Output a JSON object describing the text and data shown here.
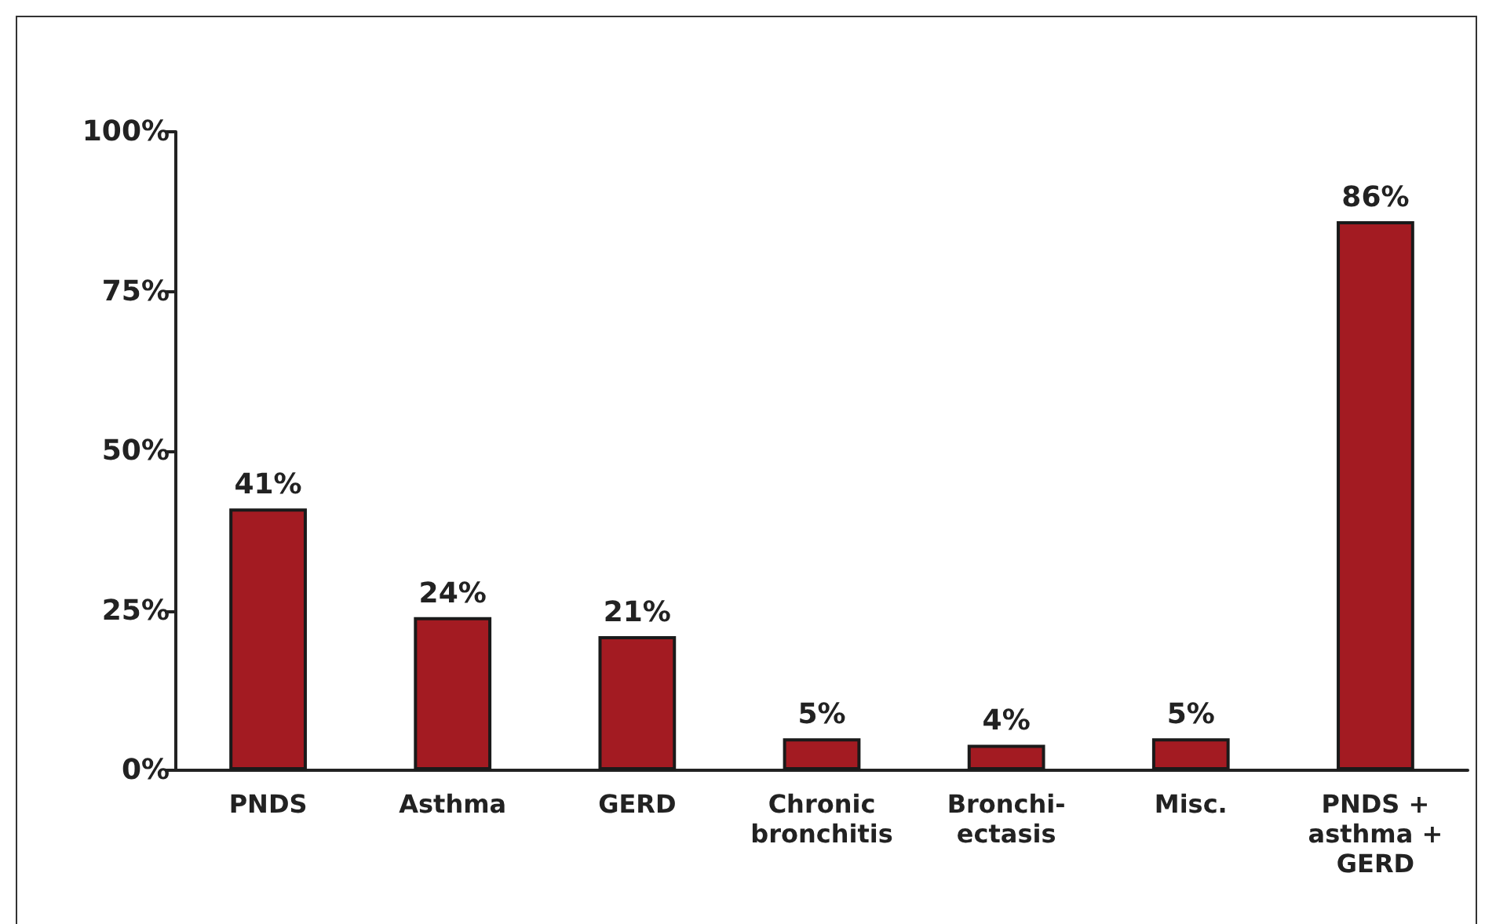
{
  "chart_data": {
    "type": "bar",
    "categories": [
      "PNDS",
      "Asthma",
      "GERD",
      "Chronic\nbronchitis",
      "Bronchi-\nectasis",
      "Misc.",
      "PNDS +\nasthma +\nGERD"
    ],
    "values": [
      41,
      24,
      21,
      5,
      4,
      5,
      86
    ],
    "value_labels": [
      "41%",
      "24%",
      "21%",
      "5%",
      "4%",
      "5%",
      "86%"
    ],
    "color": "#a31b22",
    "ylim": [
      0,
      100
    ],
    "yticks": [
      {
        "value": 0,
        "label": "0%"
      },
      {
        "value": 25,
        "label": "25%"
      },
      {
        "value": 50,
        "label": "50%"
      },
      {
        "value": 75,
        "label": "75%"
      },
      {
        "value": 100,
        "label": "100%"
      }
    ],
    "grid": false
  }
}
